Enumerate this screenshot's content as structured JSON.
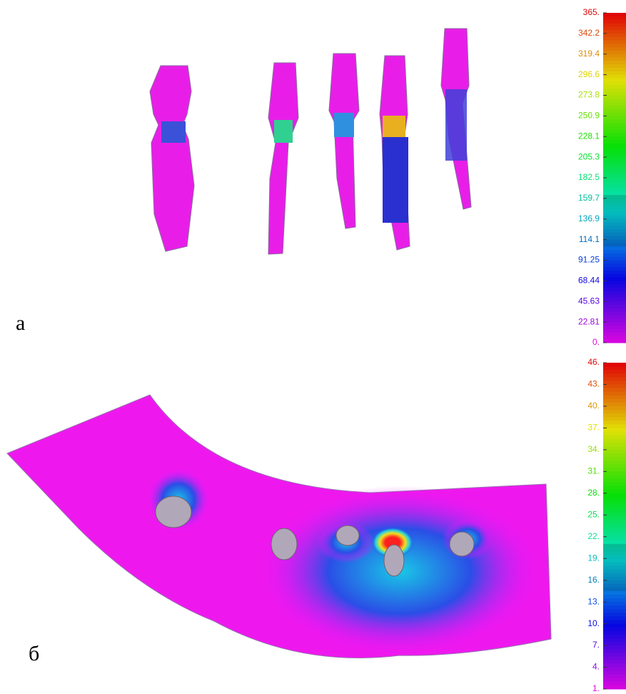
{
  "panels": [
    {
      "label": "а",
      "scale": [
        "365.",
        "342.2",
        "319.4",
        "296.6",
        "273.8",
        "250.9",
        "228.1",
        "205.3",
        "182.5",
        "159.7",
        "136.9",
        "114.1",
        "91.25",
        "68.44",
        "45.63",
        "22.81",
        "0."
      ]
    },
    {
      "label": "б",
      "scale": [
        "46.",
        "43.",
        "40.",
        "37.",
        "34.",
        "31.",
        "28.",
        "25.",
        "22.",
        "19.",
        "16.",
        "13.",
        "10.",
        "7.",
        "4.",
        "1."
      ]
    }
  ]
}
